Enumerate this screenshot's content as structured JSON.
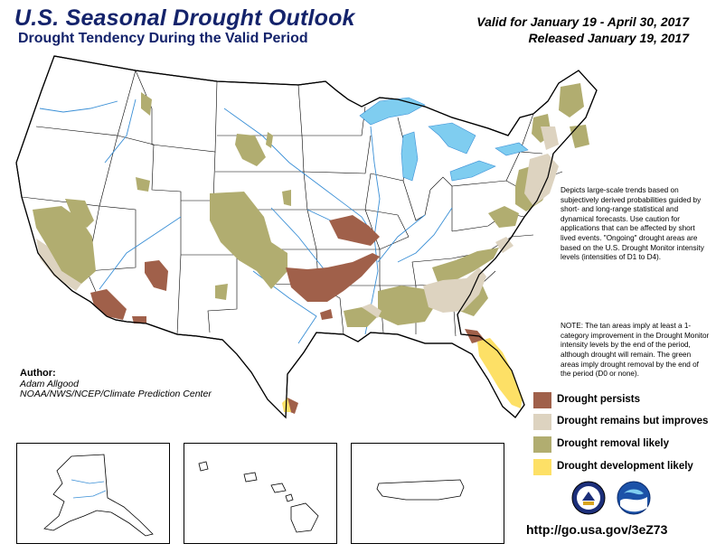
{
  "header": {
    "title": "U.S. Seasonal Drought Outlook",
    "subtitle": "Drought Tendency During the Valid Period",
    "valid": "Valid for January 19 - April 30, 2017",
    "released": "Released January 19, 2017"
  },
  "description": {
    "p1": "Depicts large-scale trends based on subjectively derived probabilities guided by short- and long-range statistical and dynamical forecasts. Use caution for applications that can be affected by short lived events. \"Ongoing\" drought areas are based on the U.S. Drought Monitor intensity levels (intensities of D1 to D4).",
    "note": "NOTE: The tan areas imply at least a 1-category improvement in the Drought Monitor intensity levels by the end of the period, although drought will remain. The green areas imply drought removal by the end of the period (D0 or none)."
  },
  "legend": [
    {
      "label": "Drought persists",
      "color": "#a0604a"
    },
    {
      "label": "Drought remains but improves",
      "color": "#ddd3c0"
    },
    {
      "label": "Drought removal likely",
      "color": "#b1ad70"
    },
    {
      "label": "Drought development likely",
      "color": "#fde066"
    }
  ],
  "author": {
    "heading": "Author:",
    "name": "Adam Allgood",
    "org": "NOAA/NWS/NCEP/Climate Prediction Center"
  },
  "url": "http://go.usa.gov/3eZ73",
  "colors": {
    "title": "#14236b",
    "water": "#7fcdf0",
    "river": "#3a8fd6",
    "border": "#000000"
  },
  "icons": [
    "doc-seal-icon",
    "noaa-logo-icon"
  ]
}
